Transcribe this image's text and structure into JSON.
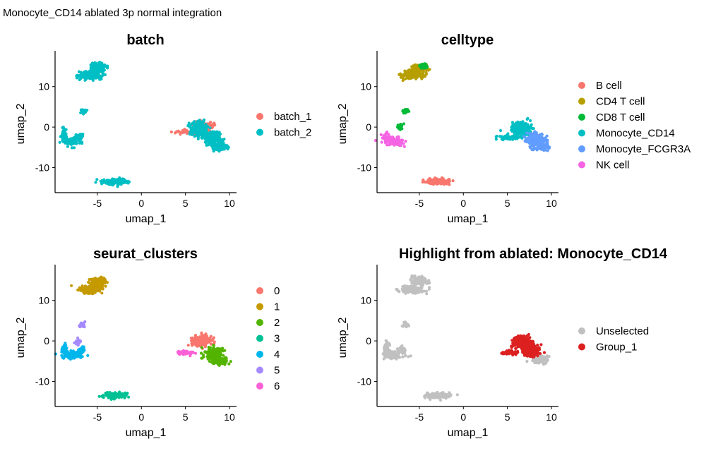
{
  "title": "Monocyte_CD14 ablated 3p normal integration",
  "chart_data": [
    {
      "id": "batch",
      "type": "scatter",
      "title": "batch",
      "xlabel": "umap_1",
      "ylabel": "umap_2",
      "xlim": [
        -9.8,
        10.8
      ],
      "ylim": [
        -16.2,
        17.8
      ],
      "xticks": [
        -5,
        0,
        5,
        10
      ],
      "yticks": [
        -10,
        0,
        10
      ],
      "legend_position": "right",
      "legend_title": "",
      "series": [
        {
          "name": "batch_1",
          "color": "#F8766D",
          "clusters": [
            [
              6.5,
              0.5,
              0.7,
              0.8,
              70
            ],
            [
              7.6,
              0.2,
              0.7,
              0.8,
              60
            ],
            [
              5.4,
              -1.2,
              1.5,
              0.4,
              60
            ]
          ]
        },
        {
          "name": "batch_2",
          "color": "#00BFC4",
          "clusters": [
            [
              -4.9,
              14.8,
              0.8,
              0.8,
              140
            ],
            [
              -5.8,
              12.8,
              1.1,
              0.8,
              160
            ],
            [
              -6.6,
              3.9,
              0.3,
              0.5,
              30
            ],
            [
              -7.9,
              -3.5,
              0.9,
              0.9,
              90
            ],
            [
              -8.8,
              -2.0,
              0.25,
              1.6,
              50
            ],
            [
              -6.9,
              -2.2,
              0.3,
              0.6,
              30
            ],
            [
              -2.9,
              -13.5,
              1.2,
              0.6,
              140
            ],
            [
              6.6,
              -0.4,
              0.8,
              1.4,
              220
            ],
            [
              8.0,
              -2.6,
              0.9,
              1.4,
              200
            ],
            [
              8.9,
              -5.0,
              0.8,
              0.6,
              160
            ]
          ]
        }
      ]
    },
    {
      "id": "celltype",
      "type": "scatter",
      "title": "celltype",
      "xlabel": "umap_1",
      "ylabel": "umap_2",
      "xlim": [
        -9.8,
        10.8
      ],
      "ylim": [
        -16.2,
        17.8
      ],
      "xticks": [
        -5,
        0,
        5,
        10
      ],
      "yticks": [
        -10,
        0,
        10
      ],
      "legend_position": "right",
      "legend_title": "",
      "series": [
        {
          "name": "B cell",
          "color": "#F8766D",
          "clusters": [
            [
              -2.9,
              -13.5,
              1.2,
              0.6,
              140
            ]
          ]
        },
        {
          "name": "CD4 T cell",
          "color": "#B79F00",
          "clusters": [
            [
              -5.0,
              14.5,
              0.8,
              0.8,
              110
            ],
            [
              -5.8,
              12.8,
              1.1,
              0.8,
              140
            ]
          ]
        },
        {
          "name": "CD8 T cell",
          "color": "#00BA38",
          "clusters": [
            [
              -4.6,
              15.0,
              0.4,
              0.5,
              40
            ],
            [
              -6.6,
              3.9,
              0.3,
              0.5,
              30
            ],
            [
              -7.2,
              0.1,
              0.3,
              0.6,
              25
            ]
          ]
        },
        {
          "name": "Monocyte_CD14",
          "color": "#00BFC4",
          "clusters": [
            [
              6.6,
              -0.2,
              0.9,
              1.2,
              200
            ],
            [
              5.4,
              -2.6,
              1.3,
              0.4,
              60
            ]
          ]
        },
        {
          "name": "Monocyte_FCGR3A",
          "color": "#619CFF",
          "clusters": [
            [
              8.2,
              -3.2,
              0.9,
              1.4,
              200
            ],
            [
              9.0,
              -5.0,
              0.7,
              0.6,
              120
            ]
          ]
        },
        {
          "name": "NK cell",
          "color": "#F564E3",
          "clusters": [
            [
              -7.8,
              -3.5,
              0.9,
              0.8,
              100
            ],
            [
              -8.8,
              -2.4,
              0.3,
              1.0,
              40
            ]
          ]
        }
      ]
    },
    {
      "id": "seurat_clusters",
      "type": "scatter",
      "title": "seurat_clusters",
      "xlabel": "umap_1",
      "ylabel": "umap_2",
      "xlim": [
        -9.8,
        10.8
      ],
      "ylim": [
        -16.2,
        17.8
      ],
      "xticks": [
        -5,
        0,
        5,
        10
      ],
      "yticks": [
        -10,
        0,
        10
      ],
      "legend_position": "right",
      "legend_title": "",
      "series": [
        {
          "name": "0",
          "color": "#F8766D",
          "clusters": [
            [
              6.7,
              0.0,
              0.9,
              1.1,
              220
            ]
          ]
        },
        {
          "name": "1",
          "color": "#C49A00",
          "clusters": [
            [
              -4.9,
              14.6,
              0.8,
              0.8,
              150
            ],
            [
              -5.8,
              12.8,
              1.1,
              0.8,
              160
            ]
          ]
        },
        {
          "name": "2",
          "color": "#53B400",
          "clusters": [
            [
              8.2,
              -3.2,
              0.9,
              1.3,
              200
            ],
            [
              9.0,
              -5.0,
              0.7,
              0.6,
              120
            ]
          ]
        },
        {
          "name": "3",
          "color": "#00C094",
          "clusters": [
            [
              -2.9,
              -13.5,
              1.2,
              0.6,
              140
            ]
          ]
        },
        {
          "name": "4",
          "color": "#00B6EB",
          "clusters": [
            [
              -7.9,
              -3.5,
              0.9,
              0.8,
              100
            ],
            [
              -8.7,
              -2.2,
              0.3,
              1.2,
              40
            ],
            [
              -6.8,
              -2.1,
              0.3,
              0.6,
              25
            ]
          ]
        },
        {
          "name": "5",
          "color": "#A58AFF",
          "clusters": [
            [
              -6.7,
              4.0,
              0.3,
              0.5,
              30
            ],
            [
              -7.2,
              -0.3,
              0.3,
              0.6,
              25
            ]
          ]
        },
        {
          "name": "6",
          "color": "#FB61D7",
          "clusters": [
            [
              5.0,
              -2.9,
              0.9,
              0.4,
              60
            ]
          ]
        }
      ]
    },
    {
      "id": "highlight",
      "type": "scatter",
      "title": "Highlight from ablated: Monocyte_CD14",
      "xlabel": "umap_1",
      "ylabel": "umap_2",
      "xlim": [
        -9.8,
        10.8
      ],
      "ylim": [
        -16.2,
        17.8
      ],
      "xticks": [
        -5,
        0,
        5,
        10
      ],
      "yticks": [
        -10,
        0,
        10
      ],
      "legend_position": "right",
      "legend_title": "",
      "series": [
        {
          "name": "Unselected",
          "color": "#C0C0C0",
          "clusters": [
            [
              -4.9,
              14.8,
              0.8,
              0.8,
              140
            ],
            [
              -5.8,
              12.8,
              1.1,
              0.8,
              160
            ],
            [
              -6.6,
              3.9,
              0.3,
              0.5,
              30
            ],
            [
              -7.9,
              -3.5,
              0.9,
              0.9,
              90
            ],
            [
              -8.8,
              -2.0,
              0.25,
              1.6,
              50
            ],
            [
              -6.9,
              -2.2,
              0.3,
              0.6,
              30
            ],
            [
              -2.9,
              -13.5,
              1.2,
              0.6,
              140
            ],
            [
              8.8,
              -4.6,
              0.7,
              0.8,
              120
            ]
          ]
        },
        {
          "name": "Group_1",
          "color": "#DC2020",
          "clusters": [
            [
              6.7,
              -0.3,
              0.9,
              1.3,
              230
            ],
            [
              7.8,
              -2.4,
              0.7,
              1.1,
              150
            ],
            [
              5.3,
              -2.9,
              0.9,
              0.4,
              60
            ]
          ]
        }
      ]
    }
  ]
}
